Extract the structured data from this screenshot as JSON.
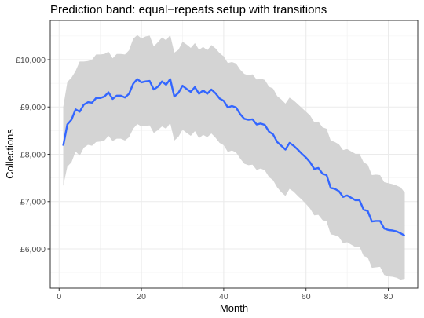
{
  "chart_data": {
    "type": "line",
    "title": "Prediction band: equal−repeats setup with transitions",
    "xlabel": "Month",
    "ylabel": "Collections",
    "xlim": [
      -2.15,
      87.15
    ],
    "ylim": [
      5170,
      10830
    ],
    "x_ticks": [
      0,
      20,
      40,
      60,
      80
    ],
    "x_tick_labels": [
      "0",
      "20",
      "40",
      "60",
      "80"
    ],
    "y_ticks": [
      6000,
      7000,
      8000,
      9000,
      10000
    ],
    "y_tick_labels": [
      "£6,000",
      "£7,000",
      "£8,000",
      "£9,000",
      "£10,000"
    ],
    "grid": true,
    "legend": "none",
    "line_color": "#3366FF",
    "band_color": "#d4d4d4",
    "series": [
      {
        "x": [
          1,
          2,
          3,
          4,
          5,
          6,
          7,
          8,
          9,
          10,
          11,
          12,
          13,
          14,
          15,
          16,
          17,
          18,
          19,
          20,
          21,
          22,
          23,
          24,
          25,
          26,
          27,
          28,
          29,
          30,
          31,
          32,
          33,
          34,
          35,
          36,
          37,
          38,
          39,
          40,
          41,
          42,
          43,
          44,
          45,
          46,
          47,
          48,
          49,
          50,
          51,
          52,
          53,
          54,
          55,
          56,
          57,
          58,
          59,
          60,
          61,
          62,
          63,
          64,
          65,
          66,
          67,
          68,
          69,
          70,
          71,
          72,
          73,
          74,
          75,
          76,
          77,
          78,
          79,
          80,
          81,
          82,
          83,
          84
        ],
        "values": [
          8180,
          8630,
          8730,
          8950,
          8900,
          9050,
          9100,
          9090,
          9190,
          9190,
          9220,
          9310,
          9170,
          9240,
          9240,
          9200,
          9280,
          9490,
          9590,
          9520,
          9540,
          9550,
          9370,
          9430,
          9540,
          9470,
          9590,
          9220,
          9300,
          9450,
          9380,
          9320,
          9420,
          9280,
          9350,
          9280,
          9370,
          9290,
          9180,
          9130,
          8990,
          9020,
          8990,
          8850,
          8750,
          8730,
          8740,
          8630,
          8650,
          8620,
          8480,
          8420,
          8260,
          8180,
          8100,
          8240,
          8180,
          8100,
          8010,
          7930,
          7830,
          7690,
          7710,
          7590,
          7560,
          7290,
          7270,
          7220,
          7100,
          7130,
          7080,
          7030,
          7030,
          6830,
          6800,
          6580,
          6590,
          6590,
          6430,
          6400,
          6390,
          6370,
          6330,
          6280
        ]
      }
    ],
    "band": {
      "x": [
        1,
        2,
        3,
        4,
        5,
        6,
        7,
        8,
        9,
        10,
        11,
        12,
        13,
        14,
        15,
        16,
        17,
        18,
        19,
        20,
        21,
        22,
        23,
        24,
        25,
        26,
        27,
        28,
        29,
        30,
        31,
        32,
        33,
        34,
        35,
        36,
        37,
        38,
        39,
        40,
        41,
        42,
        43,
        44,
        45,
        46,
        47,
        48,
        49,
        50,
        51,
        52,
        53,
        54,
        55,
        56,
        57,
        58,
        59,
        60,
        61,
        62,
        63,
        64,
        65,
        66,
        67,
        68,
        69,
        70,
        71,
        72,
        73,
        74,
        75,
        76,
        77,
        78,
        79,
        80,
        81,
        82,
        83,
        84
      ],
      "upper": [
        9000,
        9530,
        9620,
        9760,
        9960,
        9960,
        9970,
        10000,
        10110,
        10110,
        10120,
        10170,
        10030,
        10120,
        10120,
        10110,
        10200,
        10440,
        10520,
        10450,
        10490,
        10510,
        10280,
        10370,
        10470,
        10410,
        10520,
        10150,
        10210,
        10380,
        10320,
        10250,
        10350,
        10210,
        10270,
        10200,
        10310,
        10240,
        10140,
        10070,
        9930,
        9950,
        9920,
        9790,
        9700,
        9670,
        9690,
        9580,
        9600,
        9570,
        9430,
        9390,
        9230,
        9160,
        9070,
        9200,
        9140,
        9060,
        8980,
        8900,
        8820,
        8680,
        8690,
        8570,
        8540,
        8290,
        8260,
        8210,
        8090,
        8110,
        8060,
        8010,
        8010,
        7830,
        7780,
        7560,
        7570,
        7560,
        7410,
        7390,
        7370,
        7340,
        7300,
        7190
      ],
      "lower": [
        7330,
        7740,
        7830,
        8060,
        7970,
        8140,
        8200,
        8180,
        8260,
        8270,
        8290,
        8390,
        8280,
        8330,
        8330,
        8290,
        8360,
        8540,
        8640,
        8590,
        8600,
        8610,
        8450,
        8510,
        8590,
        8540,
        8660,
        8290,
        8370,
        8520,
        8450,
        8390,
        8490,
        8340,
        8410,
        8360,
        8440,
        8350,
        8240,
        8190,
        8050,
        8080,
        8040,
        7910,
        7800,
        7770,
        7780,
        7670,
        7700,
        7660,
        7520,
        7450,
        7300,
        7200,
        7120,
        7270,
        7210,
        7120,
        7040,
        6950,
        6850,
        6710,
        6720,
        6610,
        6580,
        6310,
        6290,
        6250,
        6120,
        6140,
        6090,
        6040,
        6050,
        5850,
        5820,
        5600,
        5610,
        5620,
        5450,
        5420,
        5410,
        5390,
        5350,
        5370
      ]
    }
  }
}
